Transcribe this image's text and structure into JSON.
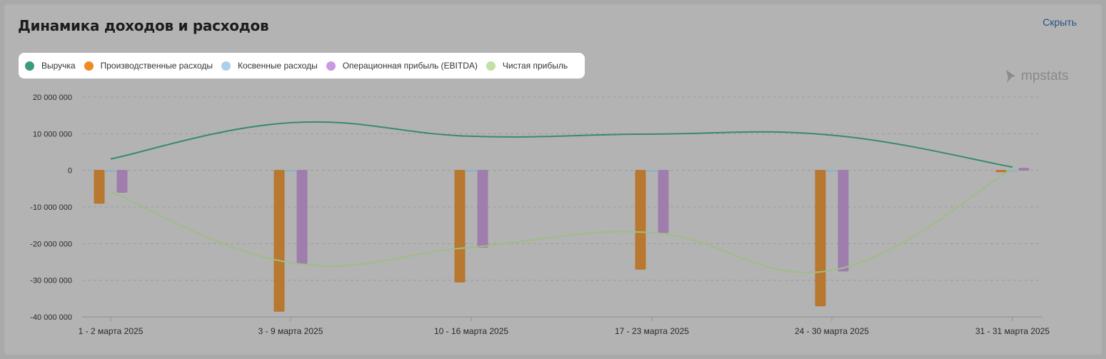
{
  "header": {
    "title": "Динамика доходов и расходов",
    "hide_label": "Скрыть"
  },
  "watermark": {
    "text": "mpstats",
    "icon": "mpstats-logo-icon"
  },
  "colors": {
    "revenue": "#3a8a6e",
    "production": "#b87324",
    "indirect": "#8eb1c6",
    "ebitda": "#9d79ad",
    "net_profit": "#9fbd86"
  },
  "chart_data": {
    "type": "bar",
    "title": "Динамика доходов и расходов",
    "xlabel": "",
    "ylabel": "",
    "ylim": [
      -40000000,
      20000000
    ],
    "yticks": [
      20000000,
      10000000,
      0,
      -10000000,
      -20000000,
      -30000000,
      -40000000
    ],
    "ytick_labels": [
      "20 000 000",
      "10 000 000",
      "0",
      "-10 000 000",
      "-20 000 000",
      "-30 000 000",
      "-40 000 000"
    ],
    "categories": [
      "1 - 2 марта 2025",
      "3 - 9 марта 2025",
      "10 - 16 марта 2025",
      "17 - 23 марта 2025",
      "24 - 30 марта 2025",
      "31 - 31 марта 2025"
    ],
    "grid": true,
    "legend_position": "top-left",
    "series": [
      {
        "name": "Выручка",
        "kind": "line",
        "color": "#3a8a6e",
        "legend_color": "#3a9c78",
        "values": [
          3100000,
          13000000,
          9300000,
          9900000,
          9600000,
          900000
        ]
      },
      {
        "name": "Производственные расходы",
        "kind": "bar",
        "color": "#b87324",
        "legend_color": "#f08a24",
        "values": [
          -9000000,
          -38500000,
          -30500000,
          -27000000,
          -37000000,
          -400000
        ]
      },
      {
        "name": "Косвенные расходы",
        "kind": "bar",
        "color": "#8eb1c6",
        "legend_color": "#a8d1ec",
        "values": [
          -300000,
          -300000,
          -300000,
          -300000,
          -300000,
          -300000
        ]
      },
      {
        "name": "Операционная прибыль (EBITDA)",
        "kind": "bar",
        "color": "#9d79ad",
        "legend_color": "#c99ae2",
        "values": [
          -6000000,
          -25500000,
          -21000000,
          -17000000,
          -27500000,
          600000
        ]
      },
      {
        "name": "Чистая прибыль",
        "kind": "line",
        "color": "#9fbd86",
        "legend_color": "#bfe0a6",
        "values": [
          -5800000,
          -25200000,
          -21000000,
          -17000000,
          -27300000,
          400000
        ]
      }
    ]
  }
}
